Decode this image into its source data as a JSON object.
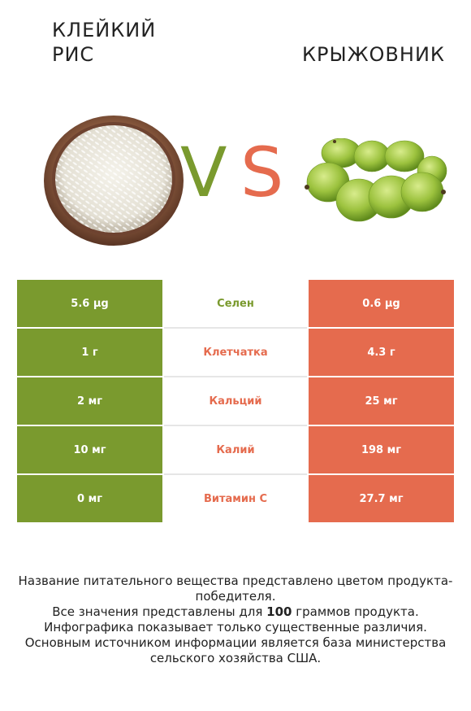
{
  "left_food": {
    "title": "Клейкий рис",
    "image": "rice-bowl-icon"
  },
  "right_food": {
    "title": "Крыжовник",
    "image": "gooseberries-icon"
  },
  "vs": {
    "v": "V",
    "s": "S"
  },
  "colors": {
    "left": "#7a9a2e",
    "right": "#e56b4e"
  },
  "rows": [
    {
      "left": "5.6 µg",
      "nutrient": "Селен",
      "right": "0.6 µg",
      "winner": "left"
    },
    {
      "left": "1 г",
      "nutrient": "Клетчатка",
      "right": "4.3 г",
      "winner": "right"
    },
    {
      "left": "2 мг",
      "nutrient": "Кальций",
      "right": "25 мг",
      "winner": "right"
    },
    {
      "left": "10 мг",
      "nutrient": "Калий",
      "right": "198 мг",
      "winner": "right"
    },
    {
      "left": "0 мг",
      "nutrient": "Витамин C",
      "right": "27.7 мг",
      "winner": "right"
    }
  ],
  "footer": {
    "line1": "Название питательного вещества представлено цветом продукта-победителя.",
    "line2_pre": "Все значения представлены для ",
    "line2_bold": "100",
    "line2_post": " граммов продукта.",
    "line3": "Инфографика показывает только существенные различия.",
    "line4": "Основным источником информации является база министерства сельского хозяйства США."
  }
}
